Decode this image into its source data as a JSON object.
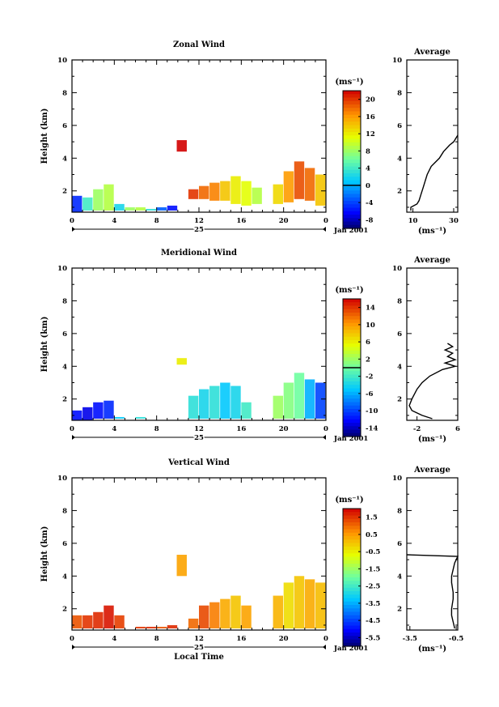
{
  "chart_data": [
    {
      "type": "heatmap",
      "title": "Zonal Wind",
      "ylabel": "Height (km)",
      "ylim": [
        0.7,
        10
      ],
      "yticks": [
        2,
        4,
        6,
        8,
        10
      ],
      "xticks": [
        "0",
        "4",
        "8",
        "12",
        "16",
        "20",
        "0"
      ],
      "xlim": [
        0,
        24
      ],
      "day_label": "25",
      "date_label": "Jan 2001",
      "colorbar": {
        "unit": "(ms⁻¹)",
        "ticks": [
          "20",
          "16",
          "12",
          "8",
          "4",
          "0",
          "-4",
          "-8"
        ],
        "range": [
          -10,
          22
        ],
        "zero_value": 0
      },
      "average": {
        "title": "Average",
        "xlabel": "(ms⁻¹)",
        "xticks": [
          "10",
          "30"
        ],
        "xtick_values": [
          10,
          30
        ],
        "xlim": [
          7,
          32
        ],
        "yticks": [
          "2",
          "4",
          "6",
          "8",
          "10"
        ],
        "profile": [
          [
            0.8,
            9
          ],
          [
            1.0,
            9
          ],
          [
            1.2,
            12
          ],
          [
            1.4,
            13
          ],
          [
            1.8,
            14
          ],
          [
            2.2,
            15
          ],
          [
            2.6,
            16
          ],
          [
            3.0,
            17
          ],
          [
            3.5,
            19
          ],
          [
            4.0,
            23
          ],
          [
            4.4,
            25
          ],
          [
            4.8,
            28
          ],
          [
            5.0,
            30
          ],
          [
            5.2,
            31
          ],
          [
            5.4,
            32
          ]
        ]
      },
      "cells": [
        {
          "x": 0,
          "h0": 0.7,
          "h1": 1.7,
          "v": -5
        },
        {
          "x": 1,
          "h0": 0.8,
          "h1": 1.6,
          "v": 4
        },
        {
          "x": 2,
          "h0": 0.8,
          "h1": 2.1,
          "v": 8
        },
        {
          "x": 3,
          "h0": 0.8,
          "h1": 2.4,
          "v": 9
        },
        {
          "x": 4,
          "h0": 0.8,
          "h1": 1.2,
          "v": 2
        },
        {
          "x": 5,
          "h0": 0.8,
          "h1": 1.0,
          "v": 8
        },
        {
          "x": 6,
          "h0": 0.8,
          "h1": 1.0,
          "v": 9
        },
        {
          "x": 7,
          "h0": 0.8,
          "h1": 0.9,
          "v": 3
        },
        {
          "x": 8,
          "h0": 0.8,
          "h1": 1.0,
          "v": -3
        },
        {
          "x": 9,
          "h0": 0.8,
          "h1": 1.1,
          "v": -6
        },
        {
          "x": 9.9,
          "h0": 4.4,
          "h1": 5.1,
          "v": 22
        },
        {
          "x": 11,
          "h0": 1.5,
          "h1": 2.1,
          "v": 20
        },
        {
          "x": 12,
          "h0": 1.5,
          "h1": 2.3,
          "v": 18
        },
        {
          "x": 13,
          "h0": 1.4,
          "h1": 2.5,
          "v": 17
        },
        {
          "x": 14,
          "h0": 1.4,
          "h1": 2.6,
          "v": 14
        },
        {
          "x": 15,
          "h0": 1.2,
          "h1": 2.9,
          "v": 12
        },
        {
          "x": 16,
          "h0": 1.1,
          "h1": 2.6,
          "v": 11
        },
        {
          "x": 17,
          "h0": 1.2,
          "h1": 2.2,
          "v": 9
        },
        {
          "x": 19,
          "h0": 1.2,
          "h1": 2.4,
          "v": 13
        },
        {
          "x": 20,
          "h0": 1.3,
          "h1": 3.2,
          "v": 16
        },
        {
          "x": 21,
          "h0": 1.5,
          "h1": 3.8,
          "v": 19
        },
        {
          "x": 22,
          "h0": 1.4,
          "h1": 3.4,
          "v": 18
        },
        {
          "x": 23,
          "h0": 1.1,
          "h1": 3.0,
          "v": 14
        }
      ]
    },
    {
      "type": "heatmap",
      "title": "Meridional Wind",
      "ylabel": "Height (km)",
      "ylim": [
        0.7,
        10
      ],
      "yticks": [
        2,
        4,
        6,
        8,
        10
      ],
      "xticks": [
        "0",
        "4",
        "8",
        "12",
        "16",
        "20",
        "0"
      ],
      "xlim": [
        0,
        24
      ],
      "day_label": "25",
      "date_label": "Jan 2001",
      "colorbar": {
        "unit": "(ms⁻¹)",
        "ticks": [
          "14",
          "10",
          "6",
          "2",
          "-2",
          "-6",
          "-10",
          "-14"
        ],
        "range": [
          -16,
          16
        ],
        "zero_value": 0
      },
      "average": {
        "title": "Average",
        "xlabel": "(ms⁻¹)",
        "xticks": [
          "-2",
          "6"
        ],
        "xtick_values": [
          -2,
          6
        ],
        "xlim": [
          -4,
          6
        ],
        "yticks": [
          "2",
          "4",
          "6",
          "8",
          "10"
        ],
        "profile": [
          [
            0.8,
            1
          ],
          [
            1.0,
            -1
          ],
          [
            1.3,
            -3
          ],
          [
            1.6,
            -3.5
          ],
          [
            2.0,
            -3
          ],
          [
            2.6,
            -2
          ],
          [
            3.0,
            -1
          ],
          [
            3.4,
            0.5
          ],
          [
            3.8,
            3
          ],
          [
            4.0,
            5.5
          ],
          [
            4.2,
            3.5
          ],
          [
            4.4,
            5.5
          ],
          [
            4.6,
            4
          ],
          [
            4.8,
            5
          ],
          [
            5.0,
            3.5
          ],
          [
            5.2,
            5
          ],
          [
            5.4,
            4
          ]
        ]
      },
      "cells": [
        {
          "x": 0,
          "h0": 0.7,
          "h1": 1.3,
          "v": -12
        },
        {
          "x": 1,
          "h0": 0.7,
          "h1": 1.5,
          "v": -13
        },
        {
          "x": 2,
          "h0": 0.8,
          "h1": 1.8,
          "v": -12
        },
        {
          "x": 3,
          "h0": 0.8,
          "h1": 1.9,
          "v": -11
        },
        {
          "x": 4,
          "h0": 0.8,
          "h1": 0.9,
          "v": -5
        },
        {
          "x": 6,
          "h0": 0.8,
          "h1": 0.9,
          "v": -3
        },
        {
          "x": 9.9,
          "h0": 4.1,
          "h1": 4.5,
          "v": 6
        },
        {
          "x": 11,
          "h0": 0.8,
          "h1": 2.2,
          "v": -3
        },
        {
          "x": 12,
          "h0": 0.8,
          "h1": 2.6,
          "v": -4
        },
        {
          "x": 13,
          "h0": 0.8,
          "h1": 2.8,
          "v": -3
        },
        {
          "x": 14,
          "h0": 0.8,
          "h1": 3.0,
          "v": -5
        },
        {
          "x": 15,
          "h0": 0.8,
          "h1": 2.8,
          "v": -4
        },
        {
          "x": 16,
          "h0": 0.8,
          "h1": 1.8,
          "v": -2
        },
        {
          "x": 19,
          "h0": 0.8,
          "h1": 2.2,
          "v": 2
        },
        {
          "x": 20,
          "h0": 0.8,
          "h1": 3.0,
          "v": 1
        },
        {
          "x": 21,
          "h0": 0.8,
          "h1": 3.6,
          "v": 0
        },
        {
          "x": 22,
          "h0": 0.8,
          "h1": 3.2,
          "v": -6
        },
        {
          "x": 23,
          "h0": 0.8,
          "h1": 3.0,
          "v": -10
        }
      ]
    },
    {
      "type": "heatmap",
      "title": "Vertical Wind",
      "ylabel": "Height (km)",
      "xlabel": "Local Time",
      "ylim": [
        0.7,
        10
      ],
      "yticks": [
        2,
        4,
        6,
        8,
        10
      ],
      "xticks": [
        "0",
        "4",
        "8",
        "12",
        "16",
        "20",
        "0"
      ],
      "xlim": [
        0,
        24
      ],
      "day_label": "25",
      "date_label": "Jan 2001",
      "colorbar": {
        "unit": "(ms⁻¹)",
        "ticks": [
          "1.5",
          "0.5",
          "-0.5",
          "-1.5",
          "-2.5",
          "-3.5",
          "-4.5",
          "-5.5"
        ],
        "range": [
          -6,
          2
        ]
      },
      "average": {
        "title": "Average",
        "xlabel": "(ms⁻¹)",
        "xticks": [
          "-3.5",
          "-0.5"
        ],
        "xtick_values": [
          -3.5,
          -0.5
        ],
        "xlim": [
          -3.7,
          -0.4
        ],
        "yticks": [
          "2",
          "4",
          "6",
          "8",
          "10"
        ],
        "profile": [
          [
            0.8,
            -0.6
          ],
          [
            1.2,
            -0.7
          ],
          [
            1.6,
            -0.8
          ],
          [
            2.0,
            -0.8
          ],
          [
            2.6,
            -0.7
          ],
          [
            3.0,
            -0.7
          ],
          [
            3.6,
            -0.8
          ],
          [
            4.0,
            -0.8
          ],
          [
            4.4,
            -0.7
          ],
          [
            4.8,
            -0.6
          ],
          [
            5.0,
            -0.5
          ],
          [
            5.2,
            -0.4
          ],
          [
            5.3,
            -3.7
          ]
        ]
      },
      "cells": [
        {
          "x": 0,
          "h0": 0.8,
          "h1": 1.6,
          "v": 1.2
        },
        {
          "x": 1,
          "h0": 0.8,
          "h1": 1.6,
          "v": 1.5
        },
        {
          "x": 2,
          "h0": 0.8,
          "h1": 1.8,
          "v": 1.6
        },
        {
          "x": 3,
          "h0": 0.8,
          "h1": 2.2,
          "v": 1.8
        },
        {
          "x": 4,
          "h0": 0.8,
          "h1": 1.6,
          "v": 1.4
        },
        {
          "x": 6,
          "h0": 0.8,
          "h1": 0.9,
          "v": 1.5
        },
        {
          "x": 7,
          "h0": 0.8,
          "h1": 0.9,
          "v": 1.6
        },
        {
          "x": 8,
          "h0": 0.8,
          "h1": 0.9,
          "v": 1.2
        },
        {
          "x": 9,
          "h0": 0.8,
          "h1": 1.0,
          "v": 1.6
        },
        {
          "x": 9.9,
          "h0": 4.0,
          "h1": 5.3,
          "v": 0.4
        },
        {
          "x": 11,
          "h0": 0.8,
          "h1": 1.4,
          "v": 1.0
        },
        {
          "x": 12,
          "h0": 0.8,
          "h1": 2.2,
          "v": 1.3
        },
        {
          "x": 13,
          "h0": 0.8,
          "h1": 2.4,
          "v": 0.8
        },
        {
          "x": 14,
          "h0": 0.8,
          "h1": 2.6,
          "v": 0.3
        },
        {
          "x": 15,
          "h0": 0.8,
          "h1": 2.8,
          "v": 0.0
        },
        {
          "x": 16,
          "h0": 0.8,
          "h1": 2.2,
          "v": 0.4
        },
        {
          "x": 19,
          "h0": 0.8,
          "h1": 2.8,
          "v": 0.2
        },
        {
          "x": 20,
          "h0": 0.8,
          "h1": 3.6,
          "v": -0.3
        },
        {
          "x": 21,
          "h0": 0.8,
          "h1": 4.0,
          "v": 0.0
        },
        {
          "x": 22,
          "h0": 0.8,
          "h1": 3.8,
          "v": 0.3
        },
        {
          "x": 23,
          "h0": 0.8,
          "h1": 3.6,
          "v": 0.1
        }
      ]
    }
  ]
}
